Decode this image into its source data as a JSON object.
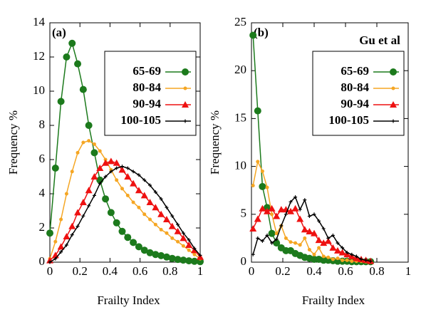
{
  "chart_data": [
    {
      "type": "line",
      "annotation": "(a)",
      "xlabel": "Frailty Index",
      "ylabel": "Frequency %",
      "xlim": [
        0,
        1
      ],
      "ylim": [
        0,
        14
      ],
      "xticks": [
        0,
        0.2,
        0.4,
        0.6,
        0.8,
        1
      ],
      "yticks": [
        0,
        2,
        4,
        6,
        8,
        10,
        12,
        14
      ],
      "legend": "upper right",
      "x": [
        0,
        0.037,
        0.074,
        0.111,
        0.148,
        0.185,
        0.222,
        0.259,
        0.296,
        0.333,
        0.37,
        0.407,
        0.444,
        0.481,
        0.518,
        0.555,
        0.592,
        0.629,
        0.666,
        0.703,
        0.74,
        0.777,
        0.814,
        0.851,
        0.888,
        0.925,
        0.962,
        1
      ],
      "series": [
        {
          "name": "65-69",
          "color": "#1c7a1c",
          "marker": "circle",
          "values": [
            1.7,
            5.5,
            9.4,
            12,
            12.8,
            11.6,
            10.1,
            8,
            6.4,
            4.8,
            3.7,
            2.9,
            2.3,
            1.8,
            1.45,
            1.15,
            0.9,
            0.7,
            0.55,
            0.45,
            0.38,
            0.3,
            0.22,
            0.16,
            0.12,
            0.08,
            0.05,
            0.03
          ]
        },
        {
          "name": "80-84",
          "color": "#f5a623",
          "marker": "dot",
          "values": [
            0.2,
            1.2,
            2.5,
            4,
            5.3,
            6.4,
            7,
            7.1,
            6.9,
            6.5,
            6,
            5.4,
            4.8,
            4.3,
            3.9,
            3.5,
            3.2,
            2.8,
            2.5,
            2.2,
            1.9,
            1.7,
            1.4,
            1.2,
            0.95,
            0.7,
            0.45,
            0.2
          ]
        },
        {
          "name": "90-94",
          "color": "#ee1111",
          "marker": "triangle",
          "values": [
            0.1,
            0.4,
            0.9,
            1.5,
            2.1,
            2.9,
            3.5,
            4.2,
            5,
            5.5,
            5.8,
            5.9,
            5.8,
            5.4,
            5,
            4.6,
            4.2,
            3.9,
            3.5,
            3.2,
            2.8,
            2.5,
            2.1,
            1.8,
            1.4,
            1,
            0.7,
            0.3
          ]
        },
        {
          "name": "100-105",
          "color": "#000000",
          "marker": "plus",
          "values": [
            0,
            0.2,
            0.6,
            1,
            1.6,
            2.1,
            2.7,
            3.3,
            3.9,
            4.6,
            5,
            5.3,
            5.5,
            5.6,
            5.5,
            5.3,
            5.1,
            4.8,
            4.5,
            4.1,
            3.7,
            3.2,
            2.7,
            2.2,
            1.7,
            1.3,
            0.8,
            0.4
          ]
        }
      ]
    },
    {
      "type": "line",
      "annotation": "(b)",
      "legend_title": "Gu et al",
      "xlabel": "Frailty Index",
      "ylabel": "Frequency %",
      "xlim": [
        0,
        1
      ],
      "ylim": [
        0,
        25
      ],
      "xticks": [
        0,
        0.2,
        0.4,
        0.6,
        0.8,
        1
      ],
      "yticks": [
        0,
        5,
        10,
        15,
        20,
        25
      ],
      "legend": "upper right",
      "x": [
        0.01,
        0.04,
        0.07,
        0.1,
        0.13,
        0.16,
        0.19,
        0.22,
        0.25,
        0.28,
        0.31,
        0.34,
        0.37,
        0.4,
        0.43,
        0.46,
        0.49,
        0.52,
        0.55,
        0.58,
        0.61,
        0.64,
        0.67,
        0.7,
        0.73,
        0.76
      ],
      "series": [
        {
          "name": "65-69",
          "color": "#1c7a1c",
          "marker": "circle",
          "values": [
            23.7,
            15.8,
            7.9,
            5.7,
            3,
            2,
            1.5,
            1.2,
            1.2,
            0.9,
            0.7,
            0.5,
            0.4,
            0.3,
            0.3,
            0.2,
            0.2,
            0.15,
            0.1,
            0.1,
            0.1,
            0.05,
            0.05,
            0.05,
            0.05,
            0.05
          ]
        },
        {
          "name": "80-84",
          "color": "#f5a623",
          "marker": "dot",
          "values": [
            8,
            10.5,
            9.5,
            7.8,
            5,
            3,
            3.8,
            2.5,
            2.1,
            2,
            1.8,
            2.5,
            1.3,
            0.8,
            1.5,
            0.6,
            0.5,
            0.3,
            0.4,
            0.2,
            0.2,
            0.1,
            0.1,
            0.1,
            0.05,
            0.05
          ]
        },
        {
          "name": "90-94",
          "color": "#ee1111",
          "marker": "triangle",
          "values": [
            3.5,
            4.5,
            5.6,
            5.3,
            5.6,
            4.8,
            5.5,
            5.5,
            5.3,
            5.6,
            4.5,
            3.4,
            3.2,
            3,
            2.3,
            2,
            2.2,
            1.5,
            1.2,
            1,
            0.8,
            0.6,
            0.4,
            0.3,
            0.2,
            0.1
          ]
        },
        {
          "name": "100-105",
          "color": "#000000",
          "marker": "plus",
          "values": [
            0.8,
            2.5,
            2.2,
            2.8,
            2,
            2.4,
            3.8,
            5,
            6.3,
            6.8,
            5.5,
            6.5,
            4.8,
            5,
            4.3,
            3.5,
            2.5,
            2.8,
            2,
            1.5,
            1,
            0.8,
            0.6,
            0.3,
            0.2,
            0.1
          ]
        }
      ]
    }
  ]
}
